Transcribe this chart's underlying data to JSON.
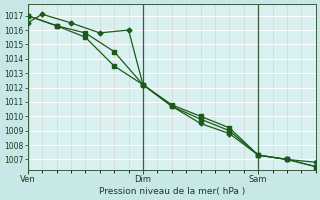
{
  "xlabel": "Pression niveau de la mer( hPa )",
  "bg_color": "#c8e8e8",
  "plot_bg_color": "#d8f0f0",
  "grid_major_color": "#ffffff",
  "grid_minor_color": "#d8c8c8",
  "line_color": "#1a5a1a",
  "ylim": [
    1006.3,
    1017.8
  ],
  "xlim": [
    0,
    20
  ],
  "yticks": [
    1007,
    1008,
    1009,
    1010,
    1011,
    1012,
    1013,
    1014,
    1015,
    1016,
    1017
  ],
  "xtick_positions": [
    0,
    8,
    16
  ],
  "xtick_labels": [
    "Ven",
    "Dim",
    "Sam"
  ],
  "vline_positions": [
    0,
    8,
    16
  ],
  "series1_x": [
    0,
    2,
    4,
    6,
    8,
    10,
    12,
    14,
    16,
    18,
    20
  ],
  "series1_y": [
    1017.0,
    1016.3,
    1015.8,
    1014.5,
    1012.2,
    1010.8,
    1010.0,
    1009.2,
    1007.3,
    1007.0,
    1006.5
  ],
  "series2_x": [
    0,
    1,
    3,
    5,
    7,
    8,
    10,
    12,
    14,
    16,
    18,
    20
  ],
  "series2_y": [
    1016.5,
    1017.1,
    1016.5,
    1015.8,
    1016.0,
    1012.2,
    1010.7,
    1009.5,
    1008.8,
    1007.3,
    1007.0,
    1006.8
  ],
  "series3_x": [
    0,
    2,
    4,
    6,
    8,
    10,
    12,
    14,
    16,
    18,
    20
  ],
  "series3_y": [
    1017.0,
    1016.3,
    1015.5,
    1013.5,
    1012.2,
    1010.7,
    1009.8,
    1009.0,
    1007.3,
    1007.0,
    1006.5
  ]
}
